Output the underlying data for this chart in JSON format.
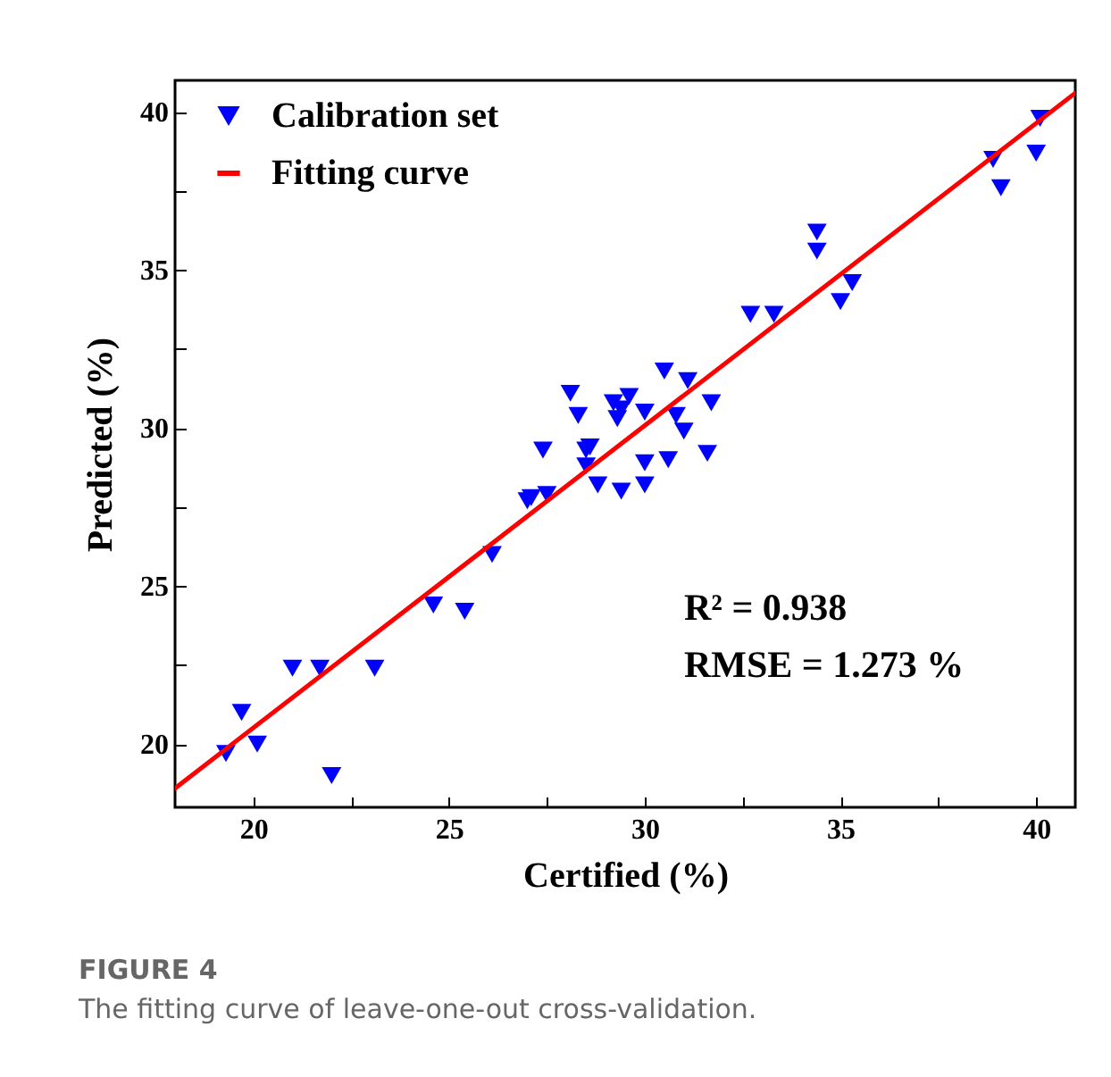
{
  "chart_data": {
    "type": "scatter",
    "xlabel": "Certified (%)",
    "ylabel": "Predicted (%)",
    "xlim": [
      18,
      41
    ],
    "ylim": [
      18,
      41
    ],
    "xticks": [
      20,
      {
        "value": 22.5,
        "label": null
      },
      25,
      {
        "value": 27.5,
        "label": null
      },
      30,
      {
        "value": 32.5,
        "label": null
      },
      35,
      {
        "value": 37.5,
        "label": null
      },
      40
    ],
    "yticks": [
      20,
      {
        "value": 22.5,
        "label": null
      },
      25,
      {
        "value": 27.5,
        "label": null
      },
      30,
      {
        "value": 32.5,
        "label": null
      },
      35,
      {
        "value": 37.5,
        "label": null
      },
      40
    ],
    "grid": false,
    "legend": "top left",
    "series": [
      {
        "name": "Calibration set",
        "marker": "triangle",
        "color": "#0000ff",
        "x": [
          19.3,
          19.7,
          20.1,
          21.0,
          21.7,
          23.1,
          22.0,
          24.6,
          25.4,
          26.1,
          27.0,
          27.1,
          27.5,
          27.4,
          28.1,
          28.3,
          28.5,
          28.6,
          28.5,
          28.8,
          29.2,
          29.6,
          29.3,
          29.4,
          29.4,
          30.0,
          30.0,
          30.0,
          30.5,
          30.6,
          30.8,
          31.0,
          31.1,
          31.6,
          31.7,
          32.7,
          33.3,
          34.4,
          34.4,
          35.0,
          35.3,
          38.9,
          39.1,
          40.1,
          40.0
        ],
        "values": [
          19.7,
          21.0,
          20.0,
          22.4,
          22.4,
          22.4,
          19.0,
          24.4,
          24.2,
          26.0,
          27.7,
          27.8,
          27.9,
          29.3,
          31.1,
          30.4,
          29.3,
          29.4,
          28.8,
          28.2,
          30.8,
          31.0,
          30.3,
          30.6,
          28.0,
          30.5,
          28.9,
          28.2,
          31.8,
          29.0,
          30.4,
          29.9,
          31.5,
          29.2,
          30.8,
          33.6,
          33.6,
          36.2,
          35.6,
          34.0,
          34.6,
          38.5,
          37.6,
          39.8,
          38.7
        ]
      },
      {
        "name": "Fitting curve",
        "type": "line",
        "color": "#ff0000",
        "x": [
          18,
          41
        ],
        "values": [
          18.6,
          40.6
        ]
      }
    ],
    "annotations": [
      "R² = 0.938",
      "RMSE = 1.273 %",
      "FIGURE 4",
      "The fitting curve of leave-one-out cross-validation."
    ]
  }
}
